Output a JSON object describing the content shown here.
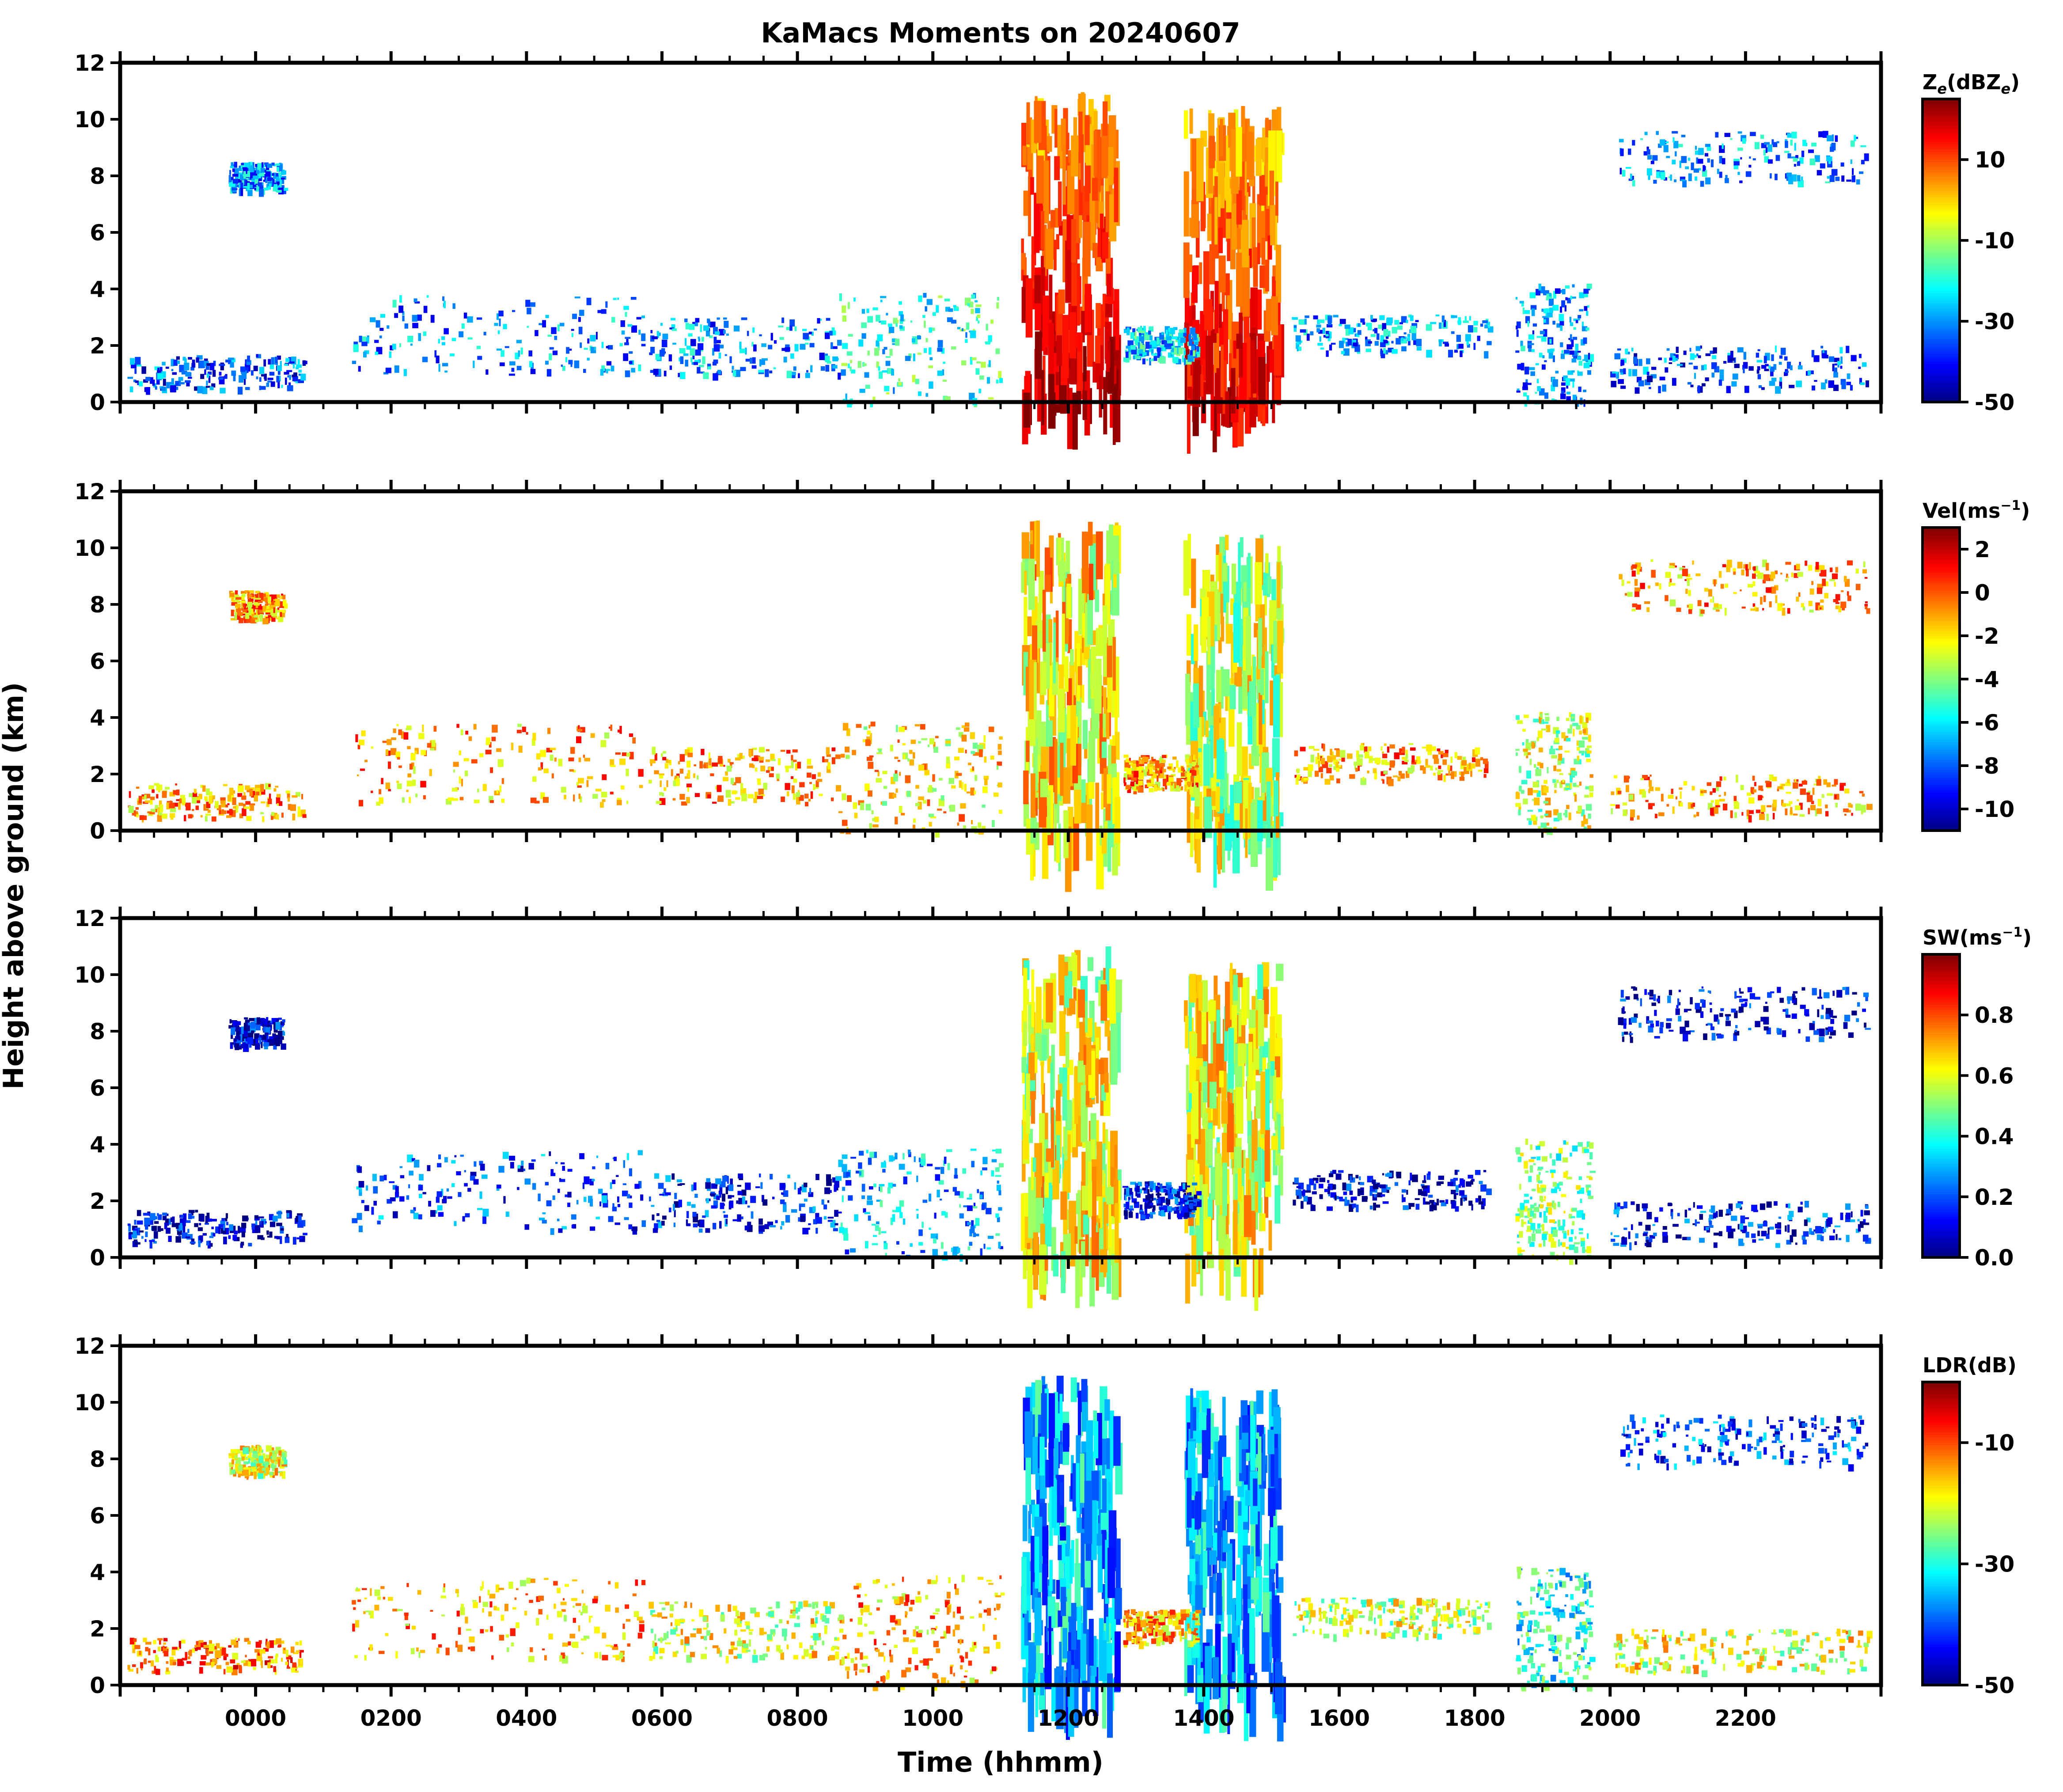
{
  "chart_data": {
    "type": "heatmap",
    "title": "KaMacs Moments on 20240607",
    "xlabel": "Time (hhmm)",
    "ylabel": "Height above ground (km)",
    "x_ticklabels": [
      "0000",
      "0200",
      "0400",
      "0600",
      "0800",
      "1000",
      "1200",
      "1400",
      "1600",
      "1800",
      "2000",
      "2200"
    ],
    "x_range_hours": [
      -2.0,
      24.0
    ],
    "panels": [
      {
        "name": "Ze",
        "cbar_label": "Ze(dBZe)",
        "cbar_main": "Z",
        "cbar_sub": "e",
        "cbar_paren": "(dBZ",
        "cbar_sub2": "e",
        "cbar_close": ")",
        "vmin": -50,
        "vmax": 25,
        "cbar_ticks": [
          10,
          -10,
          -30,
          -50
        ],
        "cbar_ticklabels": [
          "10",
          "-10",
          "-30",
          "-50"
        ],
        "ylim": [
          0,
          12
        ],
        "y_ticks": [
          "0",
          "2",
          "4",
          "6",
          "8",
          "10",
          "12"
        ]
      },
      {
        "name": "Vel",
        "cbar_label": "Vel(ms-1)",
        "cbar_main": "Vel(ms",
        "cbar_sup": "−1",
        "cbar_close": ")",
        "vmin": -11,
        "vmax": 3,
        "cbar_ticks": [
          2,
          0,
          -2,
          -4,
          -6,
          -8,
          -10
        ],
        "cbar_ticklabels": [
          "2",
          "0",
          "-2",
          "-4",
          "-6",
          "-8",
          "-10"
        ],
        "ylim": [
          0,
          12
        ],
        "y_ticks": [
          "0",
          "2",
          "4",
          "6",
          "8",
          "10",
          "12"
        ]
      },
      {
        "name": "SW",
        "cbar_label": "SW(ms-1)",
        "cbar_main": "SW(ms",
        "cbar_sup": "−1",
        "cbar_close": ")",
        "vmin": 0.0,
        "vmax": 1.0,
        "cbar_ticks": [
          0.8,
          0.6,
          0.4,
          0.2,
          0.0
        ],
        "cbar_ticklabels": [
          "0.8",
          "0.6",
          "0.4",
          "0.2",
          "0.0"
        ],
        "ylim": [
          0,
          12
        ],
        "y_ticks": [
          "0",
          "2",
          "4",
          "6",
          "8",
          "10",
          "12"
        ]
      },
      {
        "name": "LDR",
        "cbar_label": "LDR(dB)",
        "cbar_main": "LDR(dB)",
        "vmin": -50,
        "vmax": 0,
        "cbar_ticks": [
          -10,
          -30,
          -50
        ],
        "cbar_ticklabels": [
          "-10",
          "-30",
          "-50"
        ],
        "ylim": [
          0,
          12
        ],
        "y_ticks": [
          "0",
          "2",
          "4",
          "6",
          "8",
          "10",
          "12"
        ]
      }
    ],
    "features": [
      {
        "kind": "column",
        "t0": 11.3,
        "t1": 12.7,
        "h0": 0,
        "h1": 11.0,
        "ze": 15,
        "vel": -2,
        "sw": 0.6,
        "ldr": -35
      },
      {
        "kind": "column",
        "t0": 13.7,
        "t1": 15.1,
        "h0": 0,
        "h1": 10.5,
        "ze": 12,
        "vel": -3,
        "sw": 0.6,
        "ldr": -35
      },
      {
        "kind": "patch",
        "t0": -1.9,
        "t1": 0.7,
        "h0": 0.5,
        "h1": 1.7,
        "ze": -35,
        "vel": -1,
        "sw": 0.1,
        "ldr": -12
      },
      {
        "kind": "patch",
        "t0": -0.4,
        "t1": 0.4,
        "h0": 7.5,
        "h1": 8.5,
        "ze": -30,
        "vel": -1,
        "sw": 0.1,
        "ldr": -20
      },
      {
        "kind": "patch",
        "t0": 1.4,
        "t1": 5.7,
        "h0": 1.0,
        "h1": 3.8,
        "ze": -30,
        "vel": -1,
        "sw": 0.2,
        "ldr": -15
      },
      {
        "kind": "patch",
        "t0": 5.8,
        "t1": 8.6,
        "h0": 1.0,
        "h1": 3.0,
        "ze": -30,
        "vel": -1,
        "sw": 0.15,
        "ldr": -20
      },
      {
        "kind": "patch",
        "t0": 8.6,
        "t1": 11.0,
        "h0": 0,
        "h1": 3.9,
        "ze": -20,
        "vel": -2,
        "sw": 0.3,
        "ldr": -15
      },
      {
        "kind": "patch",
        "t0": 12.8,
        "t1": 13.9,
        "h0": 1.5,
        "h1": 2.7,
        "ze": -25,
        "vel": -1,
        "sw": 0.15,
        "ldr": -15
      },
      {
        "kind": "patch",
        "t0": 15.3,
        "t1": 18.2,
        "h0": 1.8,
        "h1": 3.1,
        "ze": -30,
        "vel": -1,
        "sw": 0.1,
        "ldr": -22
      },
      {
        "kind": "patch",
        "t0": 18.6,
        "t1": 19.7,
        "h0": 0,
        "h1": 4.2,
        "ze": -30,
        "vel": -3,
        "sw": 0.5,
        "ldr": -30
      },
      {
        "kind": "patch",
        "t0": 20.0,
        "t1": 23.8,
        "h0": 0.5,
        "h1": 2.0,
        "ze": -35,
        "vel": -1,
        "sw": 0.15,
        "ldr": -20
      },
      {
        "kind": "patch",
        "t0": 20.1,
        "t1": 23.8,
        "h0": 7.8,
        "h1": 9.6,
        "ze": -30,
        "vel": -1,
        "sw": 0.1,
        "ldr": -40
      }
    ]
  }
}
